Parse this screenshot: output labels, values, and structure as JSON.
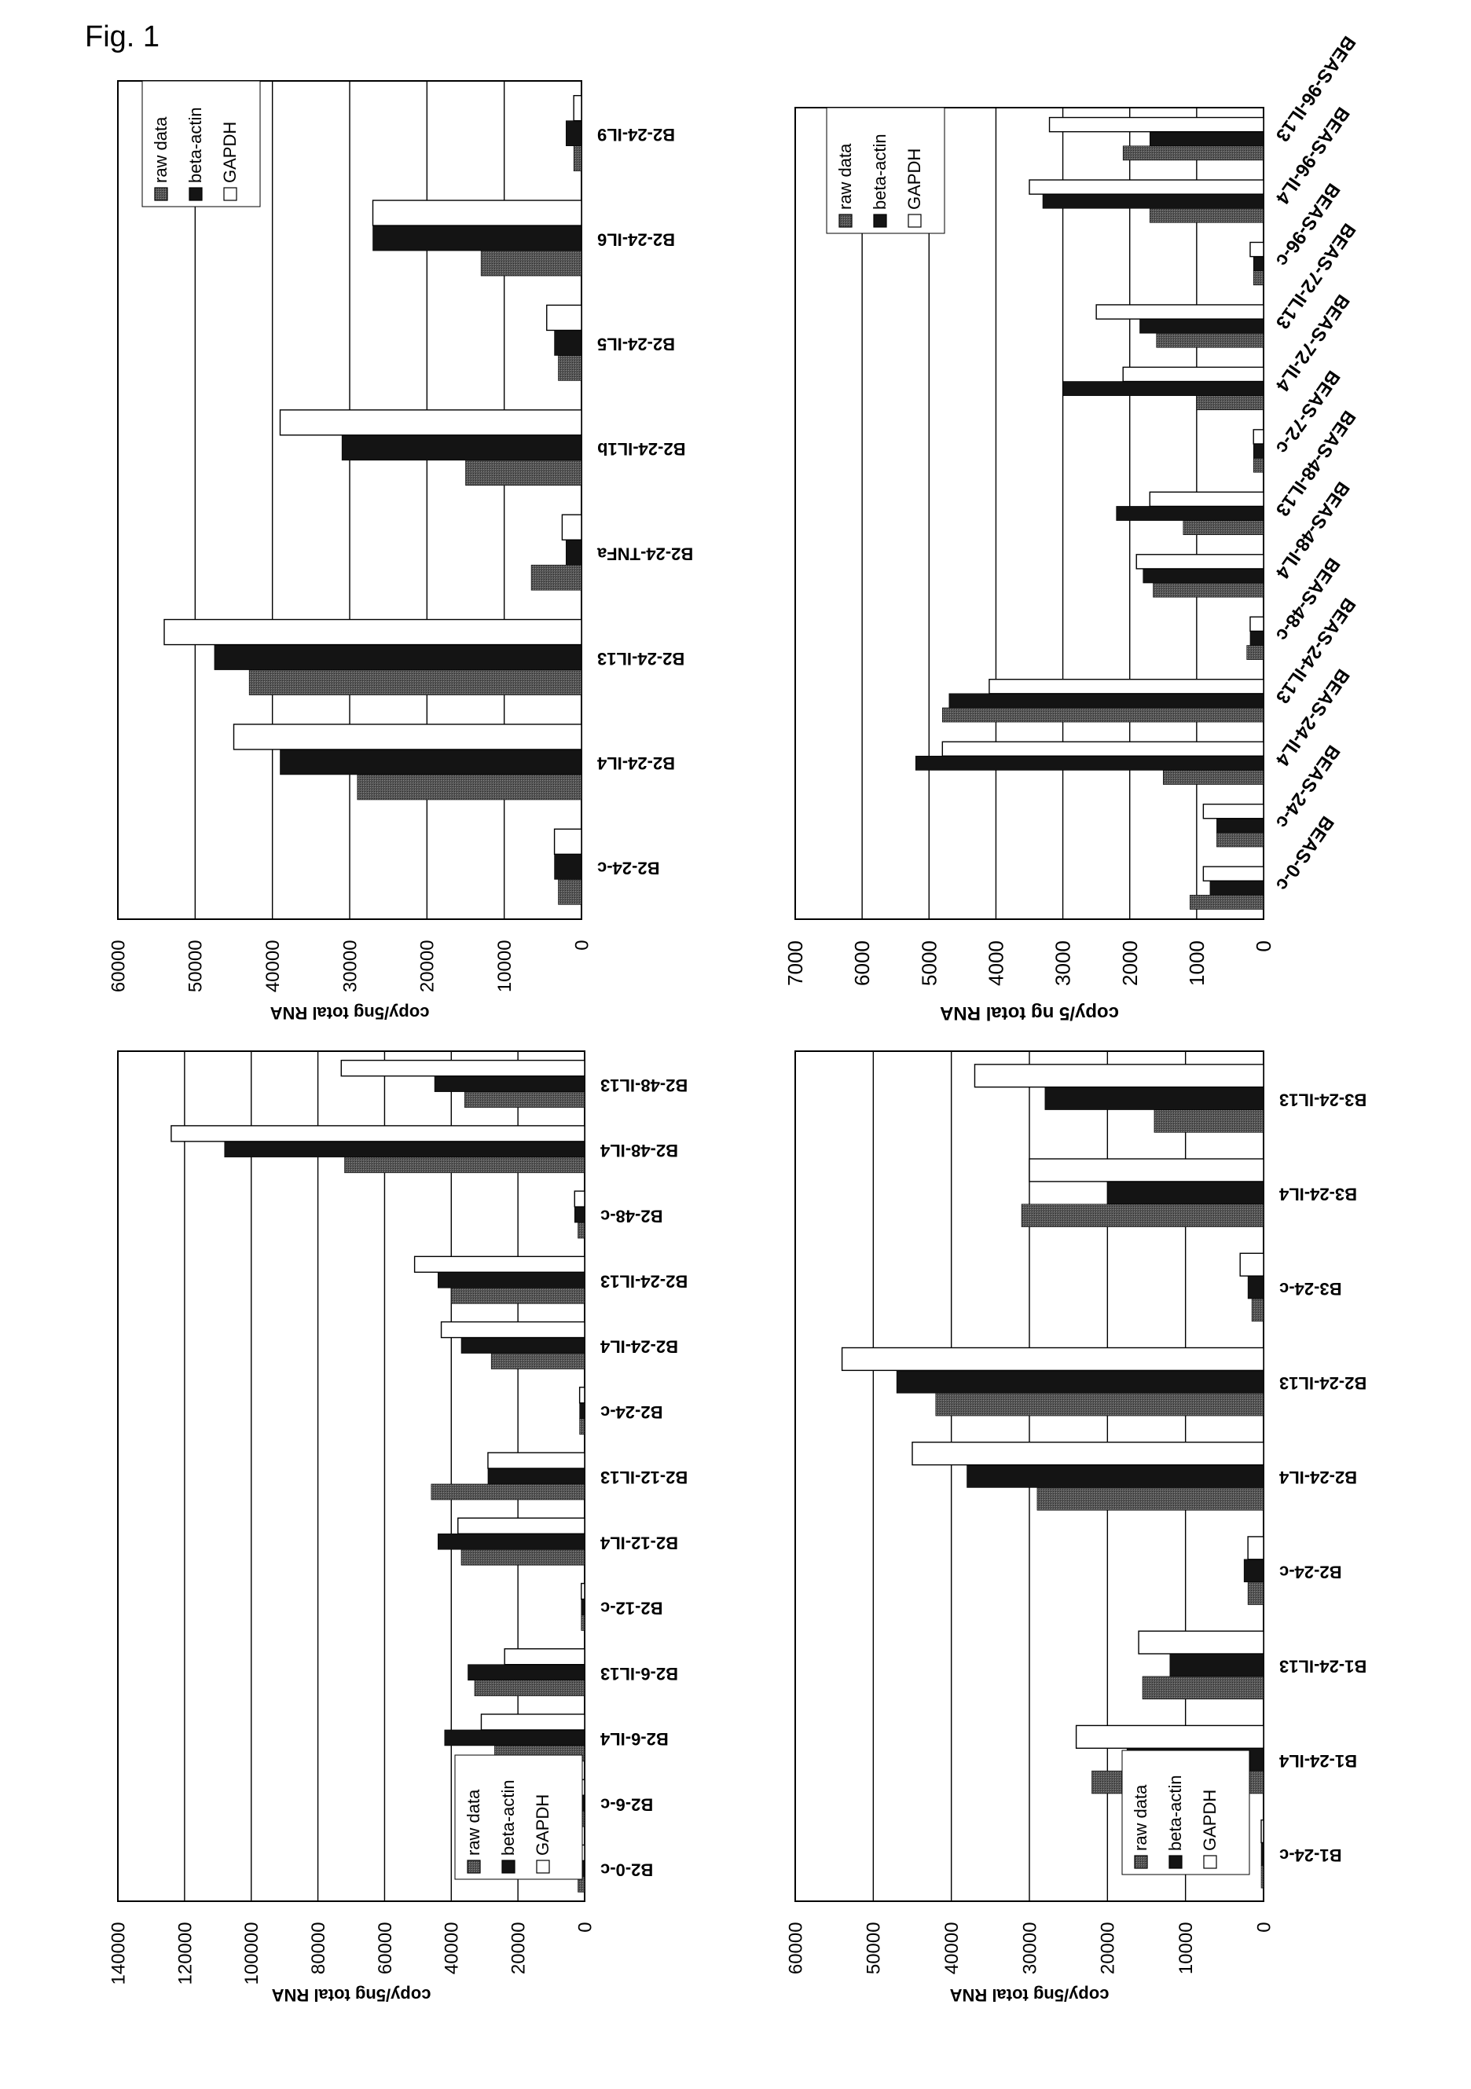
{
  "figure": {
    "label": "Fig. 1"
  },
  "legend_labels": [
    "raw data",
    "beta-actin",
    "GAPDH"
  ],
  "series_colors": {
    "raw data": "#555555",
    "beta-actin": "#141414",
    "GAPDH": "#ffffff"
  },
  "chart_data": [
    {
      "type": "bar",
      "orientation": "rotated-180",
      "ylabel": "copy/5ng total RNA",
      "ylim": [
        0,
        60000
      ],
      "yticks": [
        "0",
        "10000",
        "20000",
        "30000",
        "40000",
        "50000",
        "60000"
      ],
      "grid": true,
      "legend": "top-right",
      "categories": [
        "B2-24-c",
        "B2-24-IL4",
        "B2-24-IL13",
        "B2-24-TNFa",
        "B2-24-IL1b",
        "B2-24-IL5",
        "B2-24-IL6",
        "B2-24-IL9"
      ],
      "series": [
        {
          "name": "raw data",
          "values": [
            3000,
            29000,
            43000,
            6500,
            15000,
            3000,
            13000,
            1000
          ]
        },
        {
          "name": "beta-actin",
          "values": [
            3500,
            39000,
            47500,
            2000,
            31000,
            3500,
            27000,
            2000
          ]
        },
        {
          "name": "GAPDH",
          "values": [
            3500,
            45000,
            54000,
            2500,
            39000,
            4500,
            27000,
            1000
          ]
        }
      ]
    },
    {
      "type": "bar",
      "orientation": "rotated-180",
      "ylabel": "copy/5 ng total RNA",
      "ylim": [
        0,
        7000
      ],
      "yticks": [
        "0",
        "1000",
        "2000",
        "3000",
        "4000",
        "5000",
        "6000",
        "7000"
      ],
      "grid": true,
      "legend": "top-right",
      "categories": [
        "BEAS-0-c",
        "BEAS-24-c",
        "BEAS-24-IL4",
        "BEAS-24-IL13",
        "BEAS-48-c",
        "BEAS-48-IL4",
        "BEAS-48-IL13",
        "BEAS-72-c",
        "BEAS-72-IL4",
        "BEAS-72-IL13",
        "BEAS-96-c",
        "BEAS-96-IL4",
        "BEAS-96-IL13"
      ],
      "series": [
        {
          "name": "raw data",
          "values": [
            1100,
            700,
            1500,
            4800,
            250,
            1650,
            1200,
            150,
            1000,
            1600,
            150,
            1700,
            2100
          ]
        },
        {
          "name": "beta-actin",
          "values": [
            800,
            700,
            5200,
            4700,
            200,
            1800,
            2200,
            150,
            3000,
            1850,
            150,
            3300,
            1700
          ]
        },
        {
          "name": "GAPDH",
          "values": [
            900,
            900,
            4800,
            4100,
            200,
            1900,
            1700,
            150,
            2100,
            2500,
            200,
            3500,
            3200
          ]
        }
      ]
    },
    {
      "type": "bar",
      "orientation": "rotated-180",
      "ylabel": "copy/5ng total RNA",
      "ylim": [
        0,
        140000
      ],
      "yticks": [
        "0",
        "20000",
        "40000",
        "60000",
        "80000",
        "100000",
        "120000",
        "140000"
      ],
      "grid": true,
      "legend": "bottom-left",
      "categories": [
        "B2-0-c",
        "B2-6-c",
        "B2-6-IL4",
        "B2-6-IL13",
        "B2-12-c",
        "B2-12-IL4",
        "B2-12-IL13",
        "B2-24-c",
        "B2-24-IL4",
        "B2-24-IL13",
        "B2-48-c",
        "B2-48-IL4",
        "B2-48-IL13"
      ],
      "series": [
        {
          "name": "raw data",
          "values": [
            2000,
            1000,
            27000,
            33000,
            1000,
            37000,
            46000,
            1500,
            28000,
            40000,
            2000,
            72000,
            36000
          ]
        },
        {
          "name": "beta-actin",
          "values": [
            1000,
            1000,
            42000,
            35000,
            1000,
            44000,
            29000,
            1500,
            37000,
            44000,
            3000,
            108000,
            45000
          ]
        },
        {
          "name": "GAPDH",
          "values": [
            1000,
            1000,
            31000,
            24000,
            1000,
            38000,
            29000,
            1500,
            43000,
            51000,
            3000,
            124000,
            73000
          ]
        }
      ]
    },
    {
      "type": "bar",
      "orientation": "rotated-180",
      "ylabel": "copy/5ng total RNA",
      "ylim": [
        0,
        60000
      ],
      "yticks": [
        "0",
        "10000",
        "20000",
        "30000",
        "40000",
        "50000",
        "60000"
      ],
      "grid": true,
      "legend": "bottom-left",
      "categories": [
        "B1-24-c",
        "B1-24-IL4",
        "B1-24-IL13",
        "B2-24-c",
        "B2-24-IL4",
        "B2-24-IL13",
        "B3-24-c",
        "B3-24-IL4",
        "B3-24-IL13"
      ],
      "series": [
        {
          "name": "raw data",
          "values": [
            300,
            22000,
            15500,
            2000,
            29000,
            42000,
            1500,
            31000,
            14000
          ]
        },
        {
          "name": "beta-actin",
          "values": [
            300,
            17500,
            12000,
            2500,
            38000,
            47000,
            2000,
            20000,
            28000
          ]
        },
        {
          "name": "GAPDH",
          "values": [
            300,
            24000,
            16000,
            2000,
            45000,
            54000,
            3000,
            30000,
            37000
          ]
        }
      ]
    }
  ]
}
